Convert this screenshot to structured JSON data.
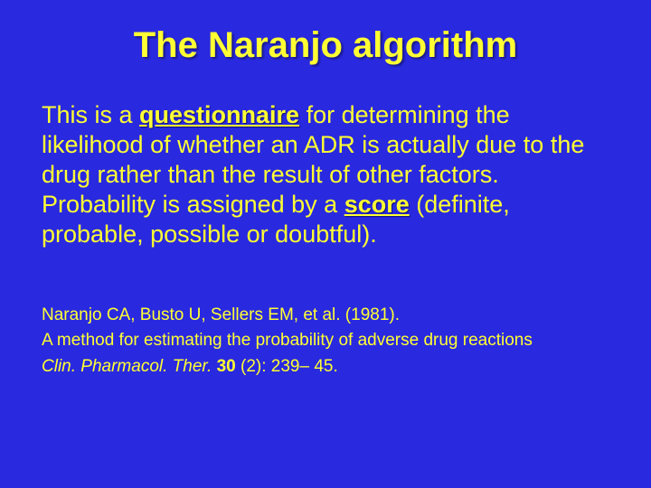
{
  "colors": {
    "background": "#2929e0",
    "text": "#ffff33"
  },
  "typography": {
    "title_fontsize": 40,
    "body_fontsize": 27,
    "citation_fontsize": 19,
    "font_family": "Arial"
  },
  "title": "The Naranjo algorithm",
  "body": {
    "p1_a": "This is a ",
    "p1_emph1": "questionnaire",
    "p1_b": " for determining the likelihood of whether an ADR is actually due to the drug  rather than the result of other factors.",
    "p2_a": "Probability is assigned by a ",
    "p2_emph1": "score",
    "p2_b": " (definite, probable, possible or doubtful)."
  },
  "citation": {
    "line1": "Naranjo CA, Busto U, Sellers EM, et al. (1981).",
    "line2": "A method for estimating the probability of adverse drug reactions",
    "line3_journal": "Clin. Pharmacol. Ther.",
    "line3_vol": " 30 ",
    "line3_rest": "(2): 239– 45."
  }
}
